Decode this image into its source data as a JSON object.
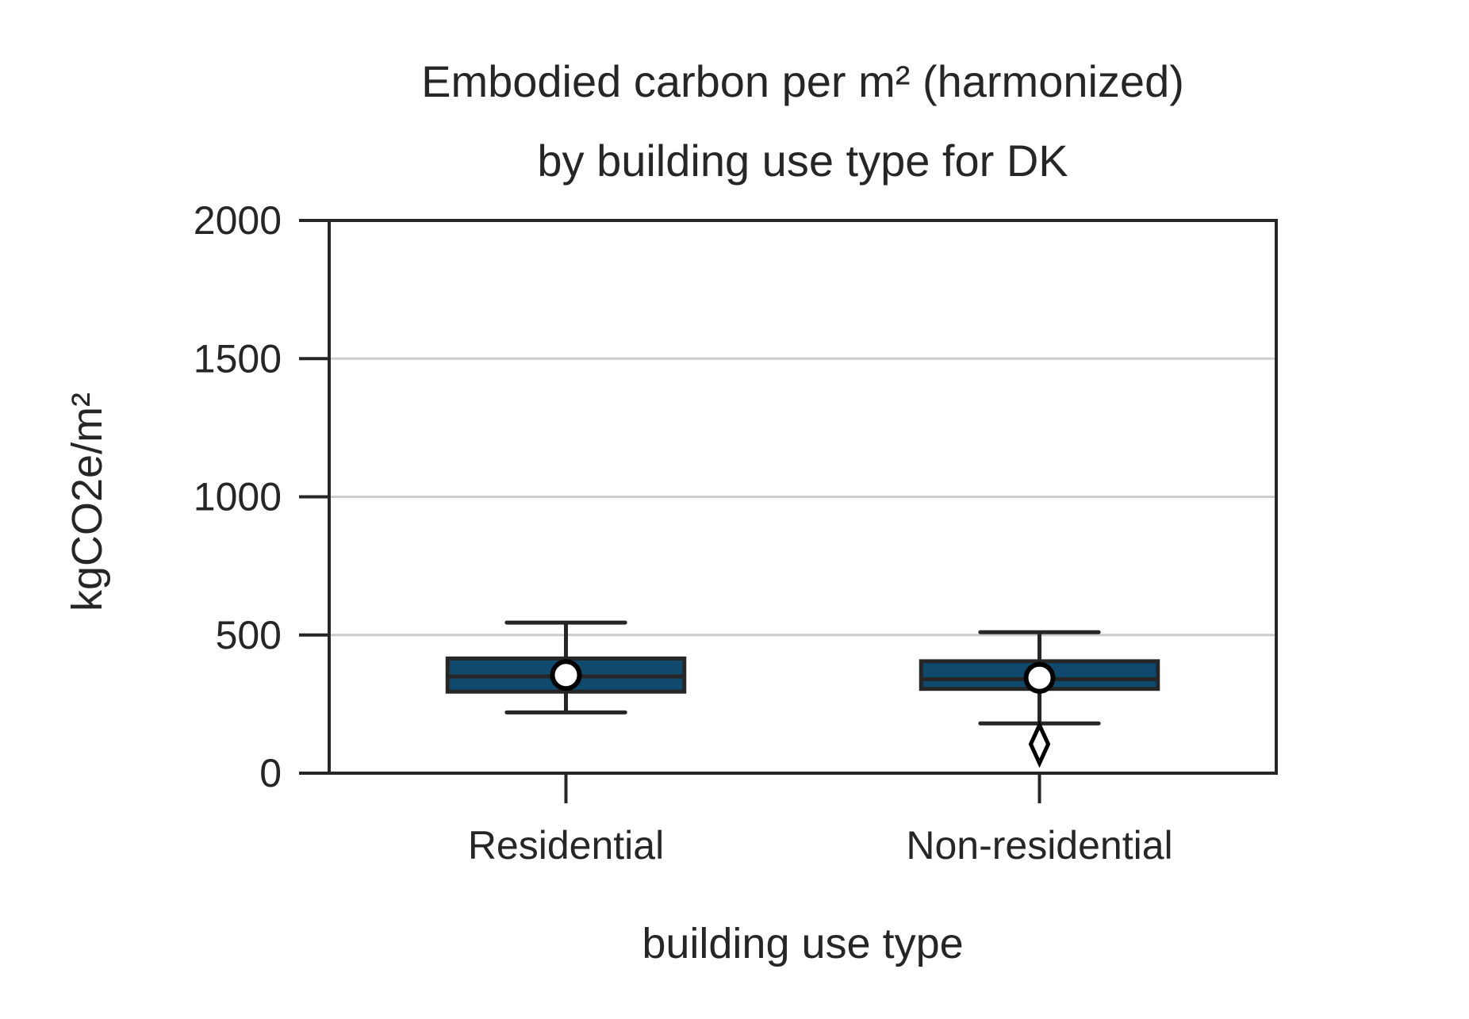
{
  "chart_data": {
    "type": "box",
    "title": "Embodied carbon per m² (harmonized)",
    "subtitle": "by building use type for DK",
    "xlabel": "building use type",
    "ylabel": "kgCO2e/m²",
    "ylim": [
      0,
      2000
    ],
    "yticks": [
      0,
      500,
      1000,
      1500,
      2000
    ],
    "grid": "horizontal",
    "categories": [
      "Residential",
      "Non-residential"
    ],
    "boxes": [
      {
        "category": "Residential",
        "whisker_low": 220,
        "q1": 295,
        "median": 350,
        "q3": 415,
        "whisker_high": 545,
        "mean": 355,
        "outliers": []
      },
      {
        "category": "Non-residential",
        "whisker_low": 180,
        "q1": 305,
        "median": 340,
        "q3": 405,
        "whisker_high": 510,
        "mean": 345,
        "outliers": [
          105
        ]
      }
    ],
    "colors": {
      "box_fill": "#0f4a6e",
      "box_edge": "#262626",
      "grid": "#cccccc",
      "axis": "#262626",
      "mean_marker_fill": "#ffffff",
      "mean_marker_edge": "#000000",
      "outlier_fill": "#ffffff",
      "outlier_edge": "#000000"
    },
    "mean_marker": "circle",
    "outlier_marker": "diamond"
  }
}
